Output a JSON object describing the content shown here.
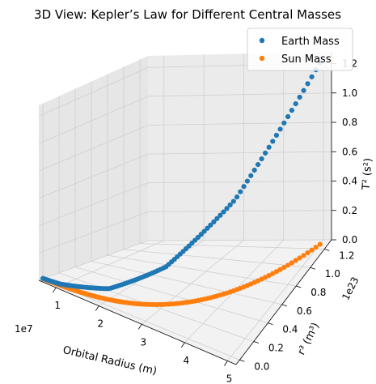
{
  "chart_data": {
    "type": "scatter",
    "projection": "3d",
    "title": "3D View: Kepler’s Law for Different Central Masses",
    "xlabel": "Orbital Radius (m)",
    "ylabel": "r³ (m³)",
    "zlabel": "T² (s²)",
    "x_multiplier": "1e7",
    "y_multiplier": "1e23",
    "xlim": [
      0.6,
      5.2
    ],
    "ylim": [
      -0.05,
      1.3
    ],
    "zlim": [
      0.0,
      1.28
    ],
    "xticks": [
      "1",
      "2",
      "3",
      "4",
      "5"
    ],
    "yticks": [
      "0.0",
      "0.2",
      "0.4",
      "0.6",
      "0.8",
      "1.0",
      "1.2"
    ],
    "zticks": [
      "0.0",
      "0.2",
      "0.4",
      "0.6",
      "0.8",
      "1.0",
      "1.2"
    ],
    "grid": true,
    "legend_position": "top-right",
    "x_range": [
      0.6,
      5.0
    ],
    "point_count": 100,
    "series": [
      {
        "name": "Earth Mass",
        "color": "#1f77b4",
        "y": "r³ = x³ (×1e21 in 1e23 units)",
        "z_at_x": [
          [
            0.6,
            0.0022
          ],
          [
            1.0,
            0.0099
          ],
          [
            2.0,
            0.079
          ],
          [
            3.0,
            0.268
          ],
          [
            4.0,
            0.636
          ],
          [
            5.0,
            1.24
          ]
        ]
      },
      {
        "name": "Sun Mass",
        "color": "#ff7f0e",
        "z_at_x": [
          [
            0.6,
            0.0
          ],
          [
            1.0,
            0.0
          ],
          [
            2.0,
            0.0
          ],
          [
            3.0,
            0.0
          ],
          [
            4.0,
            0.0
          ],
          [
            5.0,
            0.0
          ]
        ]
      }
    ]
  }
}
